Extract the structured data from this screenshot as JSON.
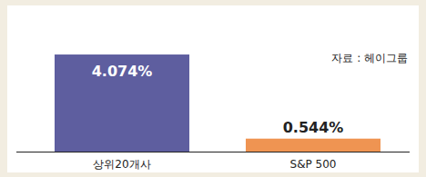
{
  "chart_data": {
    "type": "bar",
    "categories": [
      "상위20개사",
      "S&P 500"
    ],
    "values": [
      4.074,
      0.544
    ],
    "value_labels": [
      "4.074%",
      "0.544%"
    ],
    "colors": [
      "#5e5e9f",
      "#ef9452"
    ],
    "annotations": [
      "자료 : 헤이그룹"
    ],
    "ylim": [
      0,
      5.6
    ],
    "data_labels": true,
    "tick_labels": "x",
    "grid": false
  }
}
